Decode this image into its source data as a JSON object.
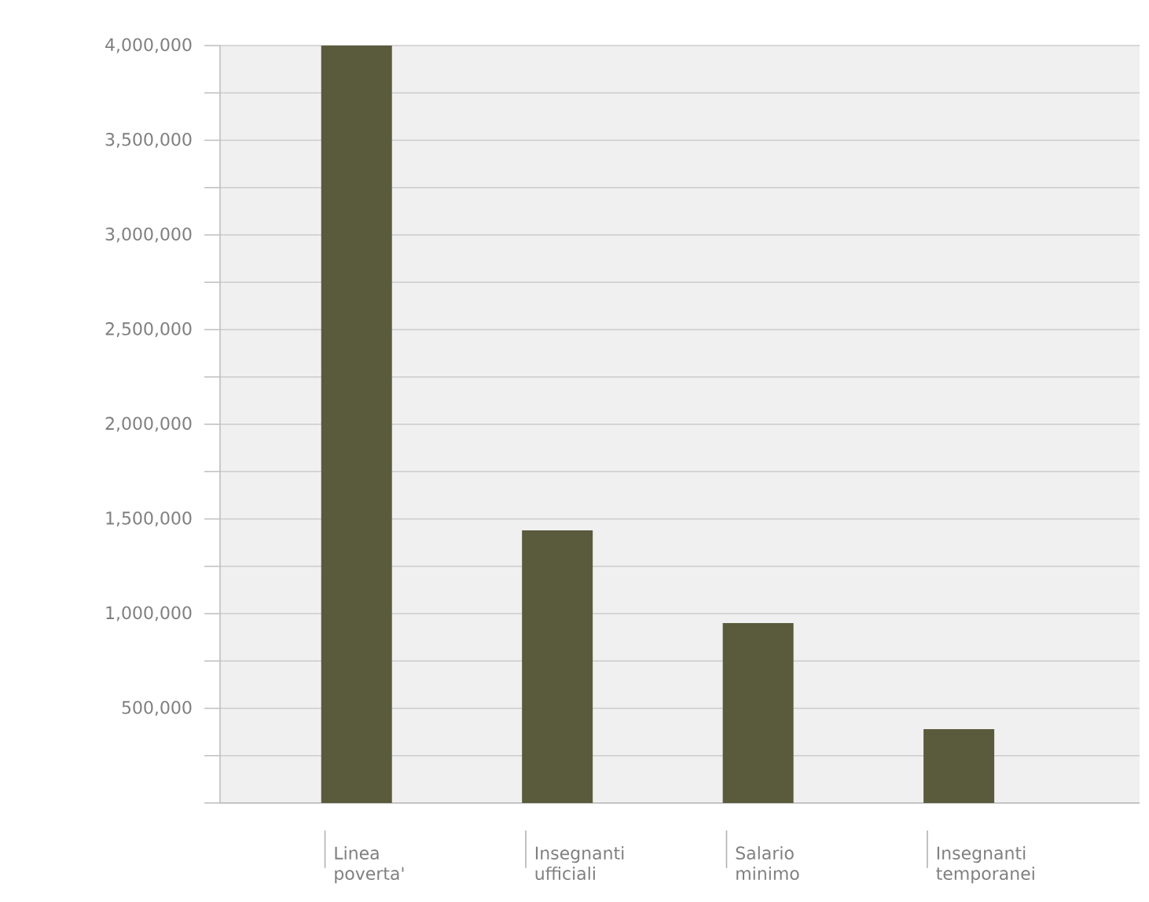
{
  "chart_data": {
    "type": "bar",
    "categories": [
      "Linea poverta'",
      "Insegnanti ufficiali",
      "Salario minimo",
      "Insegnanti temporanei"
    ],
    "values": [
      4000000,
      1440000,
      950000,
      390000
    ],
    "color": "#5a5a3c",
    "ylim": [
      0,
      4000000
    ],
    "yticks": [
      {
        "value": 0,
        "label": null
      },
      {
        "value": 250000,
        "label": null
      },
      {
        "value": 500000,
        "label": "500,000"
      },
      {
        "value": 750000,
        "label": null
      },
      {
        "value": 1000000,
        "label": "1,000,000"
      },
      {
        "value": 1250000,
        "label": null
      },
      {
        "value": 1500000,
        "label": "1,500,000"
      },
      {
        "value": 1750000,
        "label": null
      },
      {
        "value": 2000000,
        "label": "2,000,000"
      },
      {
        "value": 2250000,
        "label": null
      },
      {
        "value": 2500000,
        "label": "2,500,000"
      },
      {
        "value": 2750000,
        "label": null
      },
      {
        "value": 3000000,
        "label": "3,000,000"
      },
      {
        "value": 3250000,
        "label": null
      },
      {
        "value": 3500000,
        "label": "3,500,000"
      },
      {
        "value": 3750000,
        "label": null
      },
      {
        "value": 4000000,
        "label": "4,000,000"
      }
    ],
    "grid": "y"
  }
}
